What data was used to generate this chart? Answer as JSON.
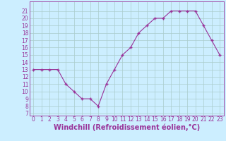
{
  "x": [
    0,
    1,
    2,
    3,
    4,
    5,
    6,
    7,
    8,
    9,
    10,
    11,
    12,
    13,
    14,
    15,
    16,
    17,
    18,
    19,
    20,
    21,
    22,
    23
  ],
  "y": [
    13,
    13,
    13,
    13,
    11,
    10,
    9,
    9,
    8,
    11,
    13,
    15,
    16,
    18,
    19,
    20,
    20,
    21,
    21,
    21,
    21,
    19,
    17,
    15
  ],
  "line_color": "#993399",
  "marker": "+",
  "bg_color": "#cceeff",
  "grid_color": "#aacccc",
  "xlabel": "Windchill (Refroidissement éolien,°C)",
  "xlabel_color": "#993399",
  "ylim_min": 7,
  "ylim_max": 22,
  "xlim_min": -0.5,
  "xlim_max": 23.5,
  "yticks": [
    7,
    8,
    9,
    10,
    11,
    12,
    13,
    14,
    15,
    16,
    17,
    18,
    19,
    20,
    21
  ],
  "xticks": [
    0,
    1,
    2,
    3,
    4,
    5,
    6,
    7,
    8,
    9,
    10,
    11,
    12,
    13,
    14,
    15,
    16,
    17,
    18,
    19,
    20,
    21,
    22,
    23
  ],
  "tick_color": "#993399",
  "tick_fontsize": 5.5,
  "xlabel_fontsize": 7.0,
  "spine_color": "#993399",
  "line_width": 0.8,
  "marker_size": 3.5
}
